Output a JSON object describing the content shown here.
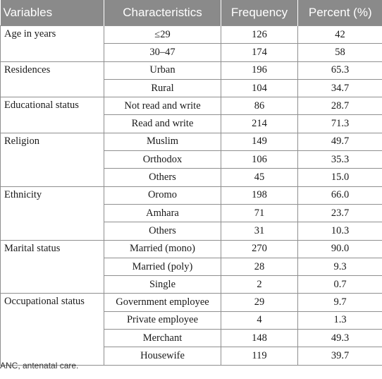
{
  "header": {
    "variables": "Variables",
    "characteristics": "Characteristics",
    "frequency": "Frequency",
    "percent": "Percent (%)"
  },
  "groups": [
    {
      "variable": "Age in years",
      "rows": [
        {
          "characteristic": "≤29",
          "frequency": "126",
          "percent": "42"
        },
        {
          "characteristic": "30–47",
          "frequency": "174",
          "percent": "58"
        }
      ]
    },
    {
      "variable": "Residences",
      "rows": [
        {
          "characteristic": "Urban",
          "frequency": "196",
          "percent": "65.3"
        },
        {
          "characteristic": "Rural",
          "frequency": "104",
          "percent": "34.7"
        }
      ]
    },
    {
      "variable": "Educational status",
      "rows": [
        {
          "characteristic": "Not read and write",
          "frequency": "86",
          "percent": "28.7"
        },
        {
          "characteristic": "Read and write",
          "frequency": "214",
          "percent": "71.3"
        }
      ]
    },
    {
      "variable": "Religion",
      "rows": [
        {
          "characteristic": "Muslim",
          "frequency": "149",
          "percent": "49.7"
        },
        {
          "characteristic": "Orthodox",
          "frequency": "106",
          "percent": "35.3"
        },
        {
          "characteristic": "Others",
          "frequency": "45",
          "percent": "15.0"
        }
      ]
    },
    {
      "variable": "Ethnicity",
      "rows": [
        {
          "characteristic": "Oromo",
          "frequency": "198",
          "percent": "66.0"
        },
        {
          "characteristic": "Amhara",
          "frequency": "71",
          "percent": "23.7"
        },
        {
          "characteristic": "Others",
          "frequency": "31",
          "percent": "10.3"
        }
      ]
    },
    {
      "variable": "Marital status",
      "rows": [
        {
          "characteristic": "Married (mono)",
          "frequency": "270",
          "percent": "90.0"
        },
        {
          "characteristic": "Married (poly)",
          "frequency": "28",
          "percent": "9.3"
        },
        {
          "characteristic": "Single",
          "frequency": "2",
          "percent": "0.7"
        }
      ]
    },
    {
      "variable": "Occupational status",
      "rows": [
        {
          "characteristic": "Government employee",
          "frequency": "29",
          "percent": "9.7"
        },
        {
          "characteristic": "Private employee",
          "frequency": "4",
          "percent": "1.3"
        },
        {
          "characteristic": "Merchant",
          "frequency": "148",
          "percent": "49.3"
        },
        {
          "characteristic": "Housewife",
          "frequency": "119",
          "percent": "39.7"
        }
      ]
    }
  ],
  "footnote": "ANC, antenatal care."
}
